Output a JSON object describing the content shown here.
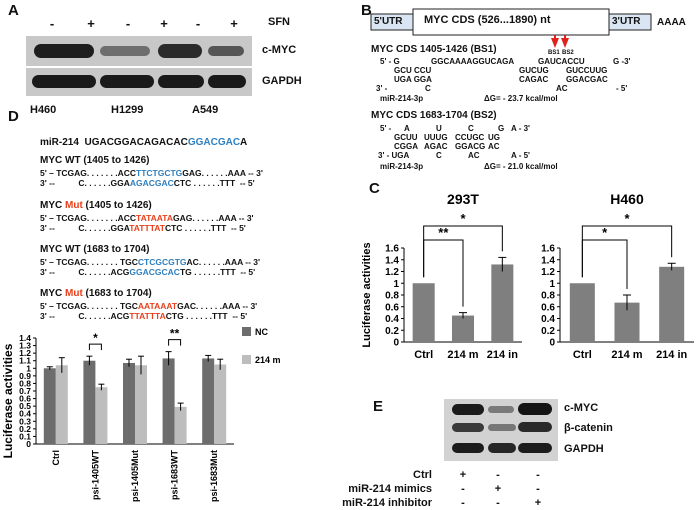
{
  "panel_A": {
    "label": "A",
    "treatment_label": "SFN",
    "signs": [
      "-",
      "+",
      "-",
      "+",
      "-",
      "+"
    ],
    "rows": [
      "c-MYC",
      "GAPDH"
    ],
    "cell_lines": [
      "H460",
      "H1299",
      "A549"
    ]
  },
  "panel_B": {
    "label": "B",
    "utr5": "5'UTR",
    "cds": "MYC CDS (526...1890) nt",
    "utr3": "3'UTR",
    "polyA": "AAAA",
    "bs1": "BS1",
    "bs2": "BS2",
    "site1": {
      "title": "MYC  CDS 1405-1426 (BS1)",
      "lines": [
        "5' - G",
        "GGCAAAAGGUCAGA",
        "GAUCACCU",
        "G -3'",
        "GCU CCU",
        "GUCUG",
        "GUCCUUG",
        "UGA GGA",
        "CAGAC",
        "GGACGAC",
        "3' -",
        "C",
        "AC",
        "- 5'"
      ],
      "mirna": "miR-214-3p",
      "dg": "ΔG= - 23.7 kcal/mol"
    },
    "site2": {
      "title": "MYC  CDS 1683-1704 (BS2)",
      "lines": [
        "5' -",
        "A",
        "U",
        "C",
        "G",
        "A - 3'",
        "GCUU",
        "UUUG",
        "CCUGC",
        "UG",
        "CGGA",
        "AGAC",
        "GGACG",
        "AC",
        "3' - UGA",
        "C",
        "AC",
        "A - 5'"
      ],
      "mirna": "miR-214-3p",
      "dg": "ΔG= - 21.0 kcal/mol"
    }
  },
  "panel_C": {
    "label": "C",
    "ylabel": "Luciferase activities"
  },
  "panel_D": {
    "label": "D",
    "mirna_prefix": "miR-214",
    "mirna_seq": "UGACGGACAGACAC",
    "mirna_seed": "GGACGAC",
    "mirna_tail": "A",
    "seq_blocks": [
      {
        "title_a": "MYC WT (1405 to 1426)",
        "title_mut": "",
        "title_b": "",
        "l1": [
          "5' – TCGAG. . . . . . .ACC",
          "TTCTGCTG",
          "GAG. . . . . .AAA -- 3'"
        ],
        "l2": [
          "3' --          C. . . . . .GGA",
          "AGACGAC",
          "CTC . . . . . .TTT  -- 5'"
        ],
        "c1": "blue",
        "c2": "blue"
      },
      {
        "title_a": "MYC ",
        "title_mut": "Mut",
        "title_b": " (1405 to 1426)",
        "l1": [
          "5' – TCGAG. . . . . . .ACC",
          "TATAATA",
          "GAG. . . . . .AAA -- 3'"
        ],
        "l2": [
          "3' --          C. . . . . .GGA",
          "TATTTAT",
          "CTC . . . . . .TTT  -- 5'"
        ],
        "c1": "mut",
        "c2": "mut"
      },
      {
        "title_a": "MYC WT (1683 to 1704)",
        "title_mut": "",
        "title_b": "",
        "l1": [
          "5' – TCGAG. . . . . . . TGC",
          "CTCGCGTG",
          "AC. . . . . .AAA -- 3'"
        ],
        "l2": [
          "3' --          C. . . . . .ACG",
          "GGACGCAC",
          "TG . . . . . .TTT  -- 5'"
        ],
        "c1": "blue",
        "c2": "blue"
      },
      {
        "title_a": "MYC ",
        "title_mut": "Mut",
        "title_b": " (1683 to 1704)",
        "l1": [
          "5' – TCGAG. . . . . . . TGC",
          "AATAAAT",
          "GAC. . . . . .AAA -- 3'"
        ],
        "l2": [
          "3' --          C. . . . . .ACG",
          "TTATTTA",
          "CTG . . . . . .TTT  -- 5'"
        ],
        "c1": "mut",
        "c2": "mut"
      }
    ]
  },
  "panel_E": {
    "label": "E",
    "rows": [
      "c-MYC",
      "β-catenin",
      "GAPDH"
    ],
    "conditions": [
      {
        "name": "Ctrl",
        "signs": [
          "+",
          "-",
          "-"
        ]
      },
      {
        "name": "miR-214 mimics",
        "signs": [
          "-",
          "+",
          "-"
        ]
      },
      {
        "name": "miR-214 inhibitor",
        "signs": [
          "-",
          "-",
          "+"
        ]
      }
    ]
  },
  "chart_data": [
    {
      "type": "bar",
      "title": "293T",
      "ylabel": "Luciferase activities",
      "categories": [
        "Ctrl",
        "214 m",
        "214 in"
      ],
      "values": [
        1.0,
        0.45,
        1.32
      ],
      "errors": [
        0,
        0.05,
        0.12
      ],
      "ylim": [
        0,
        1.6
      ],
      "yticks": [
        "0",
        "0.2",
        "0.4",
        "0.6",
        "0.8",
        "1",
        "1.2",
        "1.4",
        "1.6"
      ],
      "significance": [
        {
          "pair": [
            0,
            1
          ],
          "label": "**"
        },
        {
          "pair": [
            0,
            2
          ],
          "label": "*"
        }
      ],
      "color": "#7f7f7f"
    },
    {
      "type": "bar",
      "title": "H460",
      "ylabel": "",
      "categories": [
        "Ctrl",
        "214 m",
        "214 in"
      ],
      "values": [
        1.0,
        0.67,
        1.28
      ],
      "errors": [
        0,
        0.13,
        0.06
      ],
      "ylim": [
        0,
        1.6
      ],
      "yticks": [
        "0",
        "0.2",
        "0.4",
        "0.6",
        "0.8",
        "1",
        "1.2",
        "1.4",
        "1.6"
      ],
      "significance": [
        {
          "pair": [
            0,
            1
          ],
          "label": "*"
        },
        {
          "pair": [
            0,
            2
          ],
          "label": "*"
        }
      ],
      "color": "#7f7f7f"
    },
    {
      "type": "bar",
      "title": "",
      "ylabel": "Luciferase activities",
      "categories": [
        "Ctrl",
        "psi-1405WT",
        "psi-1405Mut",
        "psi-1683WT",
        "psi-1683Mut"
      ],
      "series": [
        {
          "name": "NC",
          "values": [
            1.0,
            1.1,
            1.07,
            1.13,
            1.13
          ],
          "errors": [
            0.02,
            0.06,
            0.05,
            0.09,
            0.04
          ],
          "color": "#6d6d6d"
        },
        {
          "name": "214 m",
          "values": [
            1.04,
            0.75,
            1.04,
            0.49,
            1.05
          ],
          "errors": [
            0.1,
            0.04,
            0.12,
            0.05,
            0.07
          ],
          "color": "#bdbdbd"
        }
      ],
      "ylim": [
        0,
        1.4
      ],
      "yticks": [
        "0",
        "0.1",
        "0.2",
        "0.3",
        "0.4",
        "0.5",
        "0.6",
        "0.7",
        "0.8",
        "0.9",
        "1",
        "1.1",
        "1.2",
        "1.3",
        "1.4"
      ],
      "significance": [
        {
          "category": 1,
          "label": "*"
        },
        {
          "category": 3,
          "label": "**"
        }
      ],
      "legend": "right"
    }
  ]
}
